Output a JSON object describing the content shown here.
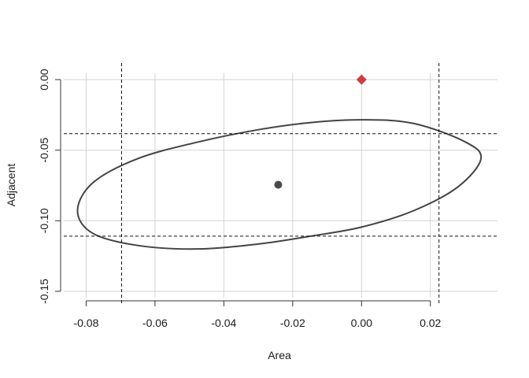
{
  "chart_data": {
    "type": "scatter",
    "title": "",
    "xlabel": "Area",
    "ylabel": "Adjacent",
    "xlim": [
      -0.0865,
      0.0395
    ],
    "ylim": [
      -0.1545,
      0.0045
    ],
    "x_ticks": [
      -0.08,
      -0.06,
      -0.04,
      -0.02,
      0.0,
      0.02
    ],
    "x_tick_labels": [
      "-0.08",
      "-0.06",
      "-0.04",
      "-0.02",
      "0.00",
      "0.02"
    ],
    "y_ticks": [
      0.0,
      -0.05,
      -0.1,
      -0.15
    ],
    "y_tick_labels": [
      "0.00",
      "-0.05",
      "-0.10",
      "-0.15"
    ],
    "grid": true,
    "points": [
      {
        "x": -0.0242,
        "y": -0.0745,
        "marker": "circle",
        "color": "#4a4a4a"
      },
      {
        "x": 0.0,
        "y": 0.0,
        "marker": "diamond",
        "color": "#d63a3a"
      }
    ],
    "ellipse": {
      "center": [
        -0.0242,
        -0.0745
      ],
      "outline": [
        [
          0.0347,
          -0.056
        ],
        [
          0.03,
          -0.044
        ],
        [
          0.015,
          -0.031
        ],
        [
          0.0,
          -0.0285
        ],
        [
          -0.015,
          -0.0305
        ],
        [
          -0.03,
          -0.0355
        ],
        [
          -0.048,
          -0.0445
        ],
        [
          -0.065,
          -0.056
        ],
        [
          -0.078,
          -0.073
        ],
        [
          -0.0825,
          -0.093
        ],
        [
          -0.078,
          -0.109
        ],
        [
          -0.065,
          -0.1175
        ],
        [
          -0.048,
          -0.12
        ],
        [
          -0.03,
          -0.1165
        ],
        [
          -0.015,
          -0.111
        ],
        [
          0.0,
          -0.1045
        ],
        [
          0.015,
          -0.093
        ],
        [
          0.028,
          -0.076
        ],
        [
          0.0347,
          -0.056
        ]
      ],
      "color": "#444444"
    },
    "reference_lines": {
      "vertical": [
        -0.0697,
        0.0225
      ],
      "horizontal": [
        -0.0383,
        -0.1109
      ],
      "style": "dashed",
      "color": "#111111"
    }
  }
}
